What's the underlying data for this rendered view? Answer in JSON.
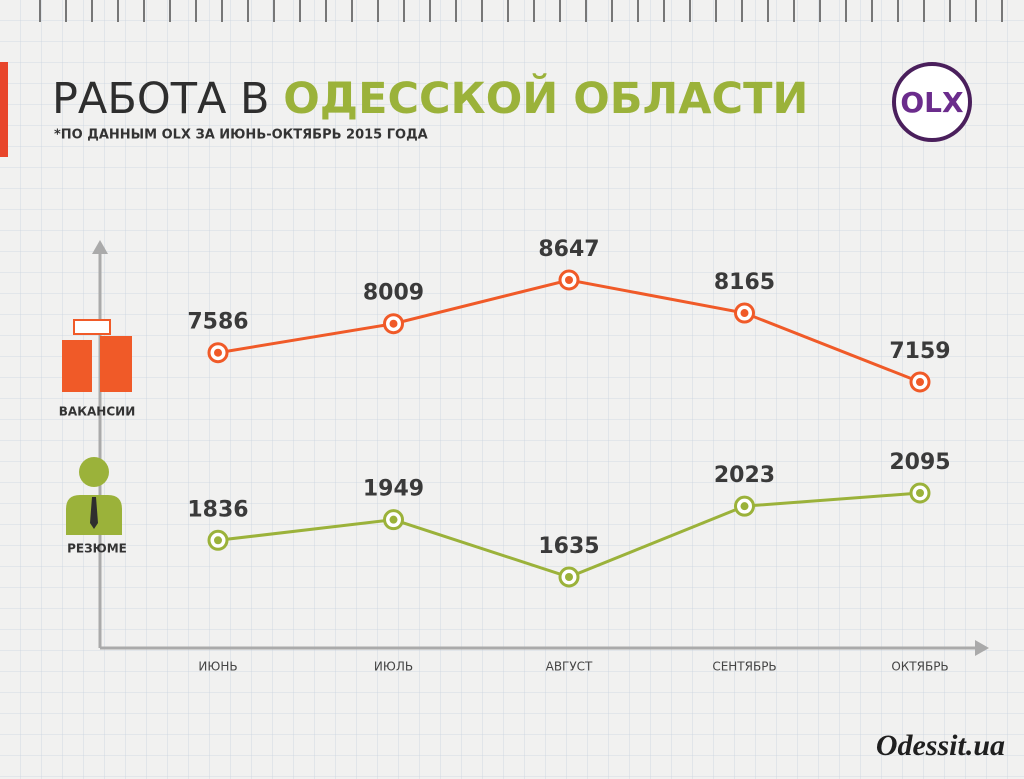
{
  "header": {
    "title_part1": "РАБОТА В",
    "title_part2": "ОДЕССКОЙ ОБЛАСТИ",
    "subtitle": "*ПО ДАННЫМ OLX ЗА ИЮНЬ-ОКТЯБРЬ 2015 ГОДА",
    "logo": "OLX"
  },
  "chart_data": {
    "type": "line",
    "categories": [
      "ИЮНЬ",
      "ИЮЛЬ",
      "АВГУСТ",
      "СЕНТЯБРЬ",
      "ОКТЯБРЬ"
    ],
    "series": [
      {
        "name": "ВАКАНСИИ",
        "color": "#f05a28",
        "values": [
          7586,
          8009,
          8647,
          8165,
          7159
        ]
      },
      {
        "name": "РЕЗЮМЕ",
        "color": "#9bb23a",
        "values": [
          1836,
          1949,
          1635,
          2023,
          2095
        ]
      }
    ]
  },
  "footer": {
    "brand": "Odessit.ua"
  }
}
